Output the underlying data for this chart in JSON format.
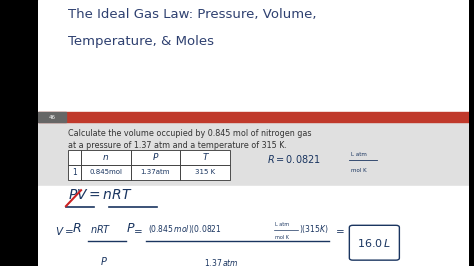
{
  "black_bg": "#000000",
  "slide_bg": "#ffffff",
  "title_color": "#2e4070",
  "red_bar_color": "#c0392b",
  "page_num_bg": "#666666",
  "page_num": "46",
  "body_bg": "#e8e8e8",
  "body_text_color": "#333333",
  "hc": "#1a3560",
  "red_strike": "#cc2222",
  "title_line1": "The Ideal Gas Law: Pressure, Volume,",
  "title_line2": "Temperature, & Moles",
  "body_line1": "Calculate the volume occupied by 0.845 mol of nitrogen gas",
  "body_line2": "at a pressure of 1.37 atm and a temperature of 315 K.",
  "table_col1_header": "n",
  "table_col2_header": "P",
  "table_col3_header": "T",
  "table_col1_val": "0.845mol",
  "table_col2_val": "1.37atm",
  "table_col3_val": "315 K",
  "table_row_label": "1"
}
